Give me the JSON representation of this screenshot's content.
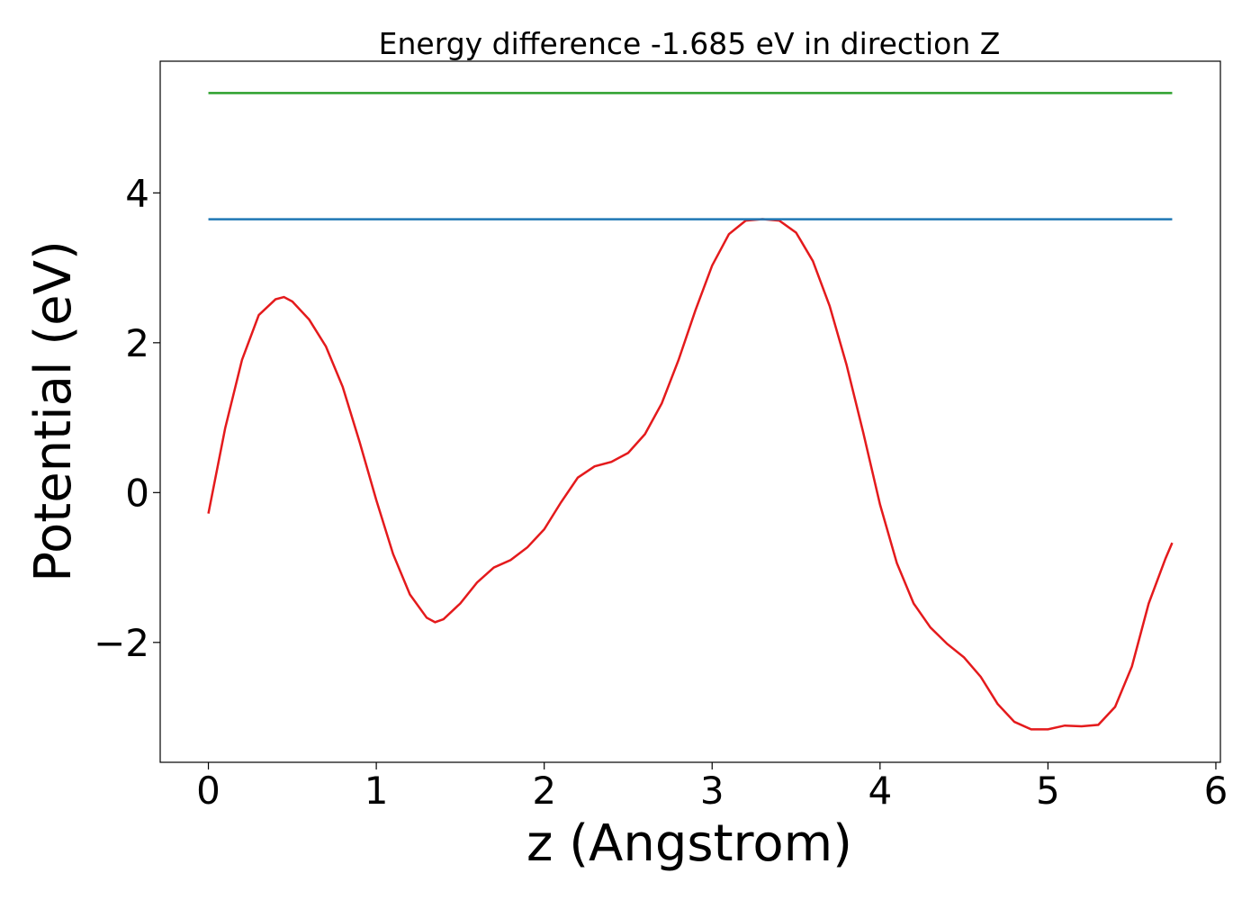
{
  "chart_data": {
    "type": "line",
    "title": "Energy difference -1.685 eV in direction Z",
    "x_label": "z (Angstrom)",
    "y_label": "Potential (eV)",
    "series": [
      {
        "color": "#e41a1c",
        "x": [
          0,
          0.1,
          0.2,
          0.3,
          0.4,
          0.45,
          0.5,
          0.6,
          0.7,
          0.8,
          0.9,
          1.0,
          1.1,
          1.2,
          1.3,
          1.35,
          1.4,
          1.5,
          1.6,
          1.7,
          1.8,
          1.9,
          2.0,
          2.1,
          2.2,
          2.3,
          2.4,
          2.5,
          2.6,
          2.7,
          2.8,
          2.9,
          3.0,
          3.1,
          3.2,
          3.3,
          3.4,
          3.5,
          3.6,
          3.7,
          3.8,
          3.9,
          4.0,
          4.1,
          4.2,
          4.3,
          4.4,
          4.5,
          4.6,
          4.7,
          4.8,
          4.9,
          5.0,
          5.1,
          5.2,
          5.3,
          5.4,
          5.5,
          5.6,
          5.7,
          5.74
        ],
        "values": [
          -0.28,
          0.86,
          1.77,
          2.37,
          2.58,
          2.61,
          2.55,
          2.31,
          1.95,
          1.41,
          0.68,
          -0.1,
          -0.82,
          -1.36,
          -1.67,
          -1.73,
          -1.69,
          -1.48,
          -1.2,
          -1.0,
          -0.9,
          -0.73,
          -0.49,
          -0.13,
          0.2,
          0.35,
          0.41,
          0.53,
          0.78,
          1.19,
          1.77,
          2.43,
          3.03,
          3.45,
          3.63,
          3.65,
          3.63,
          3.47,
          3.09,
          2.49,
          1.71,
          0.8,
          -0.16,
          -0.94,
          -1.48,
          -1.8,
          -2.02,
          -2.2,
          -2.46,
          -2.82,
          -3.06,
          -3.16,
          -3.16,
          -3.11,
          -3.12,
          -3.1,
          -2.86,
          -2.32,
          -1.48,
          -0.88,
          -0.67
        ]
      },
      {
        "color": "#1f77b4",
        "x": [
          0,
          5.74
        ],
        "values": [
          3.648,
          3.648
        ]
      },
      {
        "color": "#2ca02c",
        "x": [
          0,
          5.74
        ],
        "values": [
          5.333,
          5.333
        ]
      }
    ],
    "xlim": [
      -0.287,
      6.027
    ],
    "ylim": [
      -3.6,
      5.758
    ],
    "xticks": [
      0,
      1,
      2,
      3,
      4,
      5,
      6
    ],
    "yticks": [
      {
        "value": -2,
        "label": "−2"
      },
      0,
      2,
      4
    ]
  }
}
